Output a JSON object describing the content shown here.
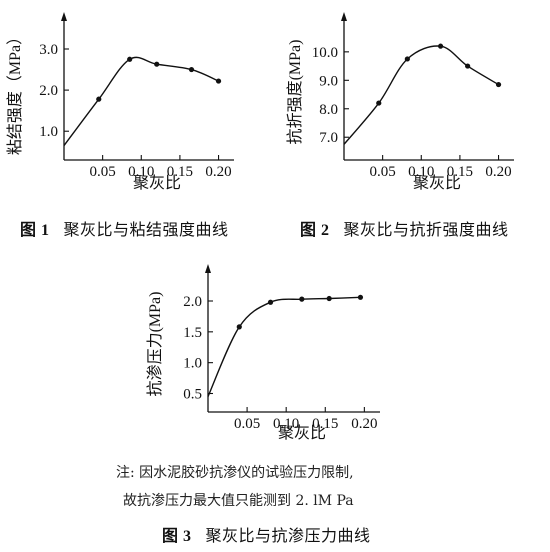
{
  "chart_data": [
    {
      "type": "line",
      "ylabel": "粘结强度（MPa）",
      "xlabel": "聚灰比",
      "caption_number": "图 1",
      "caption_text": "聚灰比与粘结强度曲线",
      "x_ticks": [
        "0.05",
        "0.10",
        "0.15",
        "0.20"
      ],
      "y_ticks": [
        "1.0",
        "2.0",
        "3.0"
      ],
      "xlim": [
        0,
        0.22
      ],
      "ylim": [
        0.3,
        3.9
      ],
      "x": [
        0.045,
        0.085,
        0.12,
        0.165,
        0.2
      ],
      "y": [
        1.78,
        2.75,
        2.63,
        2.5,
        2.22
      ]
    },
    {
      "type": "line",
      "ylabel": "抗折强度(MPa)",
      "xlabel": "聚灰比",
      "caption_number": "图 2",
      "caption_text": "聚灰比与抗折强度曲线",
      "x_ticks": [
        "0.05",
        "0.10",
        "0.15",
        "0.20"
      ],
      "y_ticks": [
        "7.0",
        "8.0",
        "9.0",
        "10.0"
      ],
      "xlim": [
        0,
        0.22
      ],
      "ylim": [
        6.2,
        11.4
      ],
      "x": [
        0.045,
        0.082,
        0.125,
        0.16,
        0.2
      ],
      "y": [
        8.2,
        9.75,
        10.2,
        9.5,
        8.85
      ]
    },
    {
      "type": "line",
      "ylabel": "抗渗压力(MPa)",
      "xlabel": "聚灰比",
      "caption_number": "图 3",
      "caption_text": "聚灰比与抗渗压力曲线",
      "x_ticks": [
        "0.05",
        "0.10",
        "0.15",
        "0.20"
      ],
      "y_ticks": [
        "0.5",
        "1.0",
        "1.5",
        "2.0"
      ],
      "xlim": [
        0,
        0.22
      ],
      "ylim": [
        0.2,
        2.6
      ],
      "x": [
        0.04,
        0.08,
        0.12,
        0.155,
        0.195
      ],
      "y": [
        1.58,
        1.98,
        2.03,
        2.04,
        2.06
      ]
    }
  ],
  "note": {
    "line1": "注: 因水泥胶砂抗渗仪的试验压力限制,",
    "line2": "故抗渗压力最大值只能测到 2. lM Pa"
  }
}
